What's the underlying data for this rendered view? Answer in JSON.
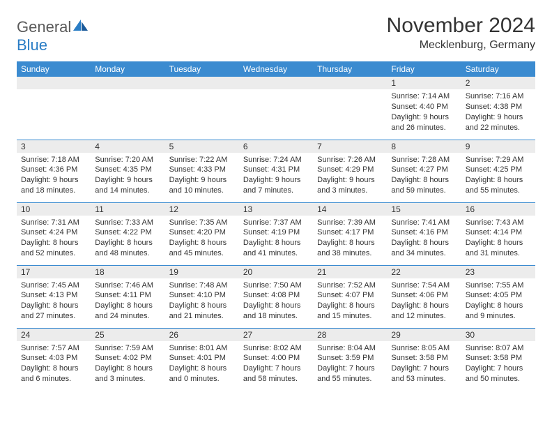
{
  "logo": {
    "text_general": "General",
    "text_blue": "Blue"
  },
  "header": {
    "title": "November 2024",
    "location": "Mecklenburg, Germany"
  },
  "calendar": {
    "header_bg": "#3b8bd0",
    "header_fg": "#ffffff",
    "border_color": "#3b8bd0",
    "daynum_bg": "#ececec",
    "days": [
      "Sunday",
      "Monday",
      "Tuesday",
      "Wednesday",
      "Thursday",
      "Friday",
      "Saturday"
    ],
    "weeks": [
      [
        {
          "num": "",
          "lines": [
            "",
            "",
            "",
            ""
          ]
        },
        {
          "num": "",
          "lines": [
            "",
            "",
            "",
            ""
          ]
        },
        {
          "num": "",
          "lines": [
            "",
            "",
            "",
            ""
          ]
        },
        {
          "num": "",
          "lines": [
            "",
            "",
            "",
            ""
          ]
        },
        {
          "num": "",
          "lines": [
            "",
            "",
            "",
            ""
          ]
        },
        {
          "num": "1",
          "lines": [
            "Sunrise: 7:14 AM",
            "Sunset: 4:40 PM",
            "Daylight: 9 hours",
            "and 26 minutes."
          ]
        },
        {
          "num": "2",
          "lines": [
            "Sunrise: 7:16 AM",
            "Sunset: 4:38 PM",
            "Daylight: 9 hours",
            "and 22 minutes."
          ]
        }
      ],
      [
        {
          "num": "3",
          "lines": [
            "Sunrise: 7:18 AM",
            "Sunset: 4:36 PM",
            "Daylight: 9 hours",
            "and 18 minutes."
          ]
        },
        {
          "num": "4",
          "lines": [
            "Sunrise: 7:20 AM",
            "Sunset: 4:35 PM",
            "Daylight: 9 hours",
            "and 14 minutes."
          ]
        },
        {
          "num": "5",
          "lines": [
            "Sunrise: 7:22 AM",
            "Sunset: 4:33 PM",
            "Daylight: 9 hours",
            "and 10 minutes."
          ]
        },
        {
          "num": "6",
          "lines": [
            "Sunrise: 7:24 AM",
            "Sunset: 4:31 PM",
            "Daylight: 9 hours",
            "and 7 minutes."
          ]
        },
        {
          "num": "7",
          "lines": [
            "Sunrise: 7:26 AM",
            "Sunset: 4:29 PM",
            "Daylight: 9 hours",
            "and 3 minutes."
          ]
        },
        {
          "num": "8",
          "lines": [
            "Sunrise: 7:28 AM",
            "Sunset: 4:27 PM",
            "Daylight: 8 hours",
            "and 59 minutes."
          ]
        },
        {
          "num": "9",
          "lines": [
            "Sunrise: 7:29 AM",
            "Sunset: 4:25 PM",
            "Daylight: 8 hours",
            "and 55 minutes."
          ]
        }
      ],
      [
        {
          "num": "10",
          "lines": [
            "Sunrise: 7:31 AM",
            "Sunset: 4:24 PM",
            "Daylight: 8 hours",
            "and 52 minutes."
          ]
        },
        {
          "num": "11",
          "lines": [
            "Sunrise: 7:33 AM",
            "Sunset: 4:22 PM",
            "Daylight: 8 hours",
            "and 48 minutes."
          ]
        },
        {
          "num": "12",
          "lines": [
            "Sunrise: 7:35 AM",
            "Sunset: 4:20 PM",
            "Daylight: 8 hours",
            "and 45 minutes."
          ]
        },
        {
          "num": "13",
          "lines": [
            "Sunrise: 7:37 AM",
            "Sunset: 4:19 PM",
            "Daylight: 8 hours",
            "and 41 minutes."
          ]
        },
        {
          "num": "14",
          "lines": [
            "Sunrise: 7:39 AM",
            "Sunset: 4:17 PM",
            "Daylight: 8 hours",
            "and 38 minutes."
          ]
        },
        {
          "num": "15",
          "lines": [
            "Sunrise: 7:41 AM",
            "Sunset: 4:16 PM",
            "Daylight: 8 hours",
            "and 34 minutes."
          ]
        },
        {
          "num": "16",
          "lines": [
            "Sunrise: 7:43 AM",
            "Sunset: 4:14 PM",
            "Daylight: 8 hours",
            "and 31 minutes."
          ]
        }
      ],
      [
        {
          "num": "17",
          "lines": [
            "Sunrise: 7:45 AM",
            "Sunset: 4:13 PM",
            "Daylight: 8 hours",
            "and 27 minutes."
          ]
        },
        {
          "num": "18",
          "lines": [
            "Sunrise: 7:46 AM",
            "Sunset: 4:11 PM",
            "Daylight: 8 hours",
            "and 24 minutes."
          ]
        },
        {
          "num": "19",
          "lines": [
            "Sunrise: 7:48 AM",
            "Sunset: 4:10 PM",
            "Daylight: 8 hours",
            "and 21 minutes."
          ]
        },
        {
          "num": "20",
          "lines": [
            "Sunrise: 7:50 AM",
            "Sunset: 4:08 PM",
            "Daylight: 8 hours",
            "and 18 minutes."
          ]
        },
        {
          "num": "21",
          "lines": [
            "Sunrise: 7:52 AM",
            "Sunset: 4:07 PM",
            "Daylight: 8 hours",
            "and 15 minutes."
          ]
        },
        {
          "num": "22",
          "lines": [
            "Sunrise: 7:54 AM",
            "Sunset: 4:06 PM",
            "Daylight: 8 hours",
            "and 12 minutes."
          ]
        },
        {
          "num": "23",
          "lines": [
            "Sunrise: 7:55 AM",
            "Sunset: 4:05 PM",
            "Daylight: 8 hours",
            "and 9 minutes."
          ]
        }
      ],
      [
        {
          "num": "24",
          "lines": [
            "Sunrise: 7:57 AM",
            "Sunset: 4:03 PM",
            "Daylight: 8 hours",
            "and 6 minutes."
          ]
        },
        {
          "num": "25",
          "lines": [
            "Sunrise: 7:59 AM",
            "Sunset: 4:02 PM",
            "Daylight: 8 hours",
            "and 3 minutes."
          ]
        },
        {
          "num": "26",
          "lines": [
            "Sunrise: 8:01 AM",
            "Sunset: 4:01 PM",
            "Daylight: 8 hours",
            "and 0 minutes."
          ]
        },
        {
          "num": "27",
          "lines": [
            "Sunrise: 8:02 AM",
            "Sunset: 4:00 PM",
            "Daylight: 7 hours",
            "and 58 minutes."
          ]
        },
        {
          "num": "28",
          "lines": [
            "Sunrise: 8:04 AM",
            "Sunset: 3:59 PM",
            "Daylight: 7 hours",
            "and 55 minutes."
          ]
        },
        {
          "num": "29",
          "lines": [
            "Sunrise: 8:05 AM",
            "Sunset: 3:58 PM",
            "Daylight: 7 hours",
            "and 53 minutes."
          ]
        },
        {
          "num": "30",
          "lines": [
            "Sunrise: 8:07 AM",
            "Sunset: 3:58 PM",
            "Daylight: 7 hours",
            "and 50 minutes."
          ]
        }
      ]
    ]
  }
}
